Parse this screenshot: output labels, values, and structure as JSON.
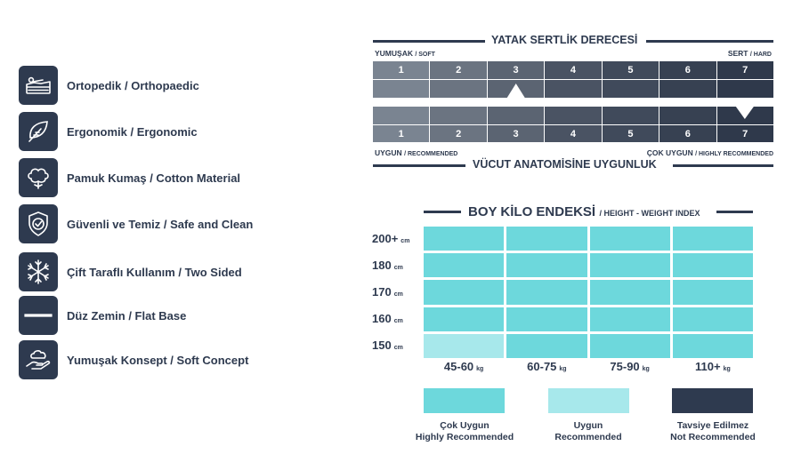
{
  "colors": {
    "navy": "#2e3a4f",
    "highly_recommended": "#6dd8dc",
    "recommended": "#a7e8eb",
    "not_recommended": "#2e3a4f",
    "firmness_gradient": [
      "#7a8491",
      "#6b7481",
      "#5b6472",
      "#4a5363",
      "#404a5b",
      "#374152",
      "#2f394b"
    ]
  },
  "features": [
    {
      "icon": "orthopedic-mattress-icon",
      "label": "Ortopedik / Orthopaedic"
    },
    {
      "icon": "leaf-icon",
      "label": "Ergonomik / Ergonomic"
    },
    {
      "icon": "cotton-flower-icon",
      "label": "Pamuk Kumaş / Cotton Material"
    },
    {
      "icon": "shield-check-icon",
      "label": "Güvenli ve Temiz / Safe and Clean"
    },
    {
      "icon": "snowflake-sun-icon",
      "label": "Çift Taraflı Kullanım /  Two Sided"
    },
    {
      "icon": "flat-base-icon",
      "label": "Düz Zemin / Flat Base"
    },
    {
      "icon": "cloud-hand-icon",
      "label": "Yumuşak Konsept / Soft Concept"
    }
  ],
  "firmness": {
    "title": "YATAK SERTLİK DERECESİ",
    "soft_label": "YUMUŞAK",
    "soft_sub": "/ SOFT",
    "hard_label": "SERT",
    "hard_sub": "/ HARD",
    "scale": [
      "1",
      "2",
      "3",
      "4",
      "5",
      "6",
      "7"
    ],
    "firmness_level": 3
  },
  "anatomy": {
    "title": "VÜCUT ANATOMİSİNE UYGUNLUK",
    "low_label": "UYGUN",
    "low_sub": "/ RECOMMENDED",
    "high_label": "ÇOK UYGUN",
    "high_sub": "/ HIGHLY RECOMMENDED",
    "scale": [
      "1",
      "2",
      "3",
      "4",
      "5",
      "6",
      "7"
    ],
    "suitability_level": 7
  },
  "hw_index": {
    "title": "BOY KİLO ENDEKSİ",
    "subtitle": "/ HEIGHT - WEIGHT INDEX",
    "height_unit": "cm",
    "weight_unit": "kg",
    "heights": [
      "200+",
      "180",
      "170",
      "160",
      "150"
    ],
    "weights": [
      "45-60",
      "60-75",
      "75-90",
      "110+"
    ],
    "matrix": [
      [
        "highly",
        "highly",
        "highly",
        "highly"
      ],
      [
        "highly",
        "highly",
        "highly",
        "highly"
      ],
      [
        "highly",
        "highly",
        "highly",
        "highly"
      ],
      [
        "highly",
        "highly",
        "highly",
        "highly"
      ],
      [
        "recommended",
        "highly",
        "highly",
        "highly"
      ]
    ]
  },
  "legend": [
    {
      "key": "highly",
      "line1": "Çok Uygun",
      "line2": "Highly Recommended"
    },
    {
      "key": "recommended",
      "line1": "Uygun",
      "line2": "Recommended"
    },
    {
      "key": "not",
      "line1": "Tavsiye Edilmez",
      "line2": "Not Recommended"
    }
  ]
}
